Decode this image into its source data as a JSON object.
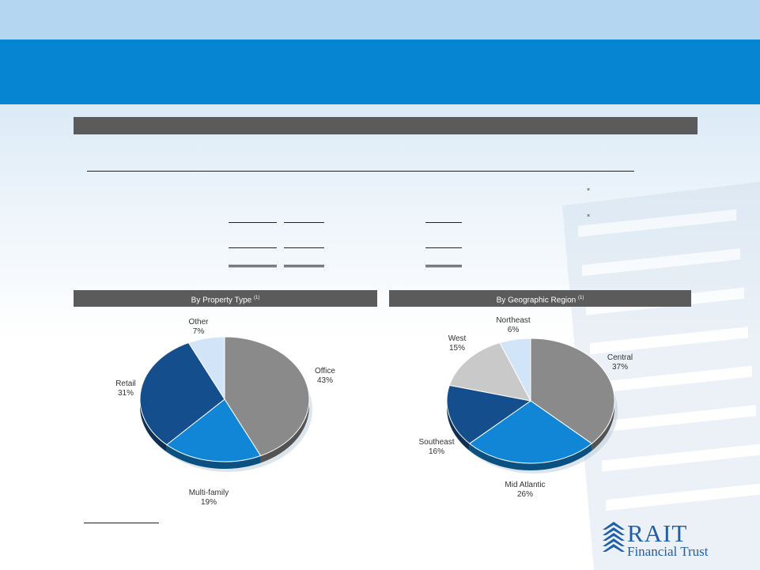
{
  "slide": {
    "colors": {
      "top_band": "#b5d6f0",
      "title_band": "#0585d2",
      "section_bar": "#5b5b5b",
      "brand": "#1f5ea8"
    }
  },
  "chart_data": [
    {
      "type": "pie",
      "title": "By Property Type",
      "title_footnote": "(1)",
      "slices": [
        {
          "label": "Office",
          "value": 43,
          "value_label": "43%",
          "color": "#8a8a8a"
        },
        {
          "label": "Multi-family",
          "value": 19,
          "value_label": "19%",
          "color": "#1185d6"
        },
        {
          "label": "Retail",
          "value": 31,
          "value_label": "31%",
          "color": "#154e8c"
        },
        {
          "label": "Other",
          "value": 7,
          "value_label": "7%",
          "color": "#d2e4f7"
        }
      ]
    },
    {
      "type": "pie",
      "title": "By Geographic Region",
      "title_footnote": "(1)",
      "slices": [
        {
          "label": "Central",
          "value": 37,
          "value_label": "37%",
          "color": "#8a8a8a"
        },
        {
          "label": "Mid Atlantic",
          "value": 26,
          "value_label": "26%",
          "color": "#1185d6"
        },
        {
          "label": "Southeast",
          "value": 16,
          "value_label": "16%",
          "color": "#154e8c"
        },
        {
          "label": "West",
          "value": 15,
          "value_label": "15%",
          "color": "#c9c9c9"
        },
        {
          "label": "Northeast",
          "value": 6,
          "value_label": "6%",
          "color": "#d2e4f7"
        }
      ]
    }
  ],
  "logo": {
    "name": "RAIT",
    "tagline": "Financial Trust"
  }
}
